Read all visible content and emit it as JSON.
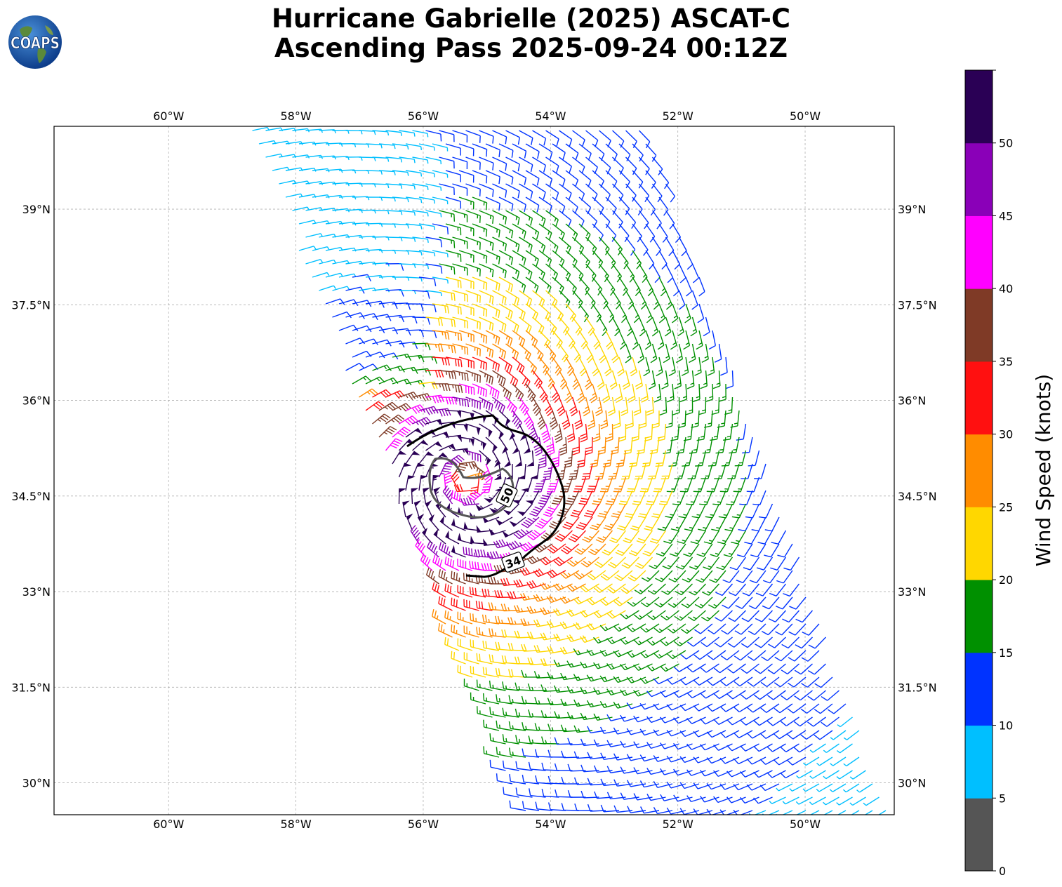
{
  "title": {
    "line1": "Hurricane Gabrielle (2025) ASCAT-C",
    "line2": "Ascending Pass 2025-09-24 00:12Z"
  },
  "logo": {
    "text": "COAPS",
    "icon": "globe-icon"
  },
  "map": {
    "lon_ticks": [
      "60°W",
      "58°W",
      "56°W",
      "54°W",
      "52°W",
      "50°W"
    ],
    "lat_ticks": [
      "39°N",
      "37.5°N",
      "36°N",
      "34.5°N",
      "33°N",
      "31.5°N",
      "30°N"
    ],
    "lon_values": [
      -60,
      -58,
      -56,
      -54,
      -52,
      -50
    ],
    "lat_values": [
      39,
      37.5,
      36,
      34.5,
      33,
      31.5,
      30
    ],
    "lon_range": [
      -61.8,
      -48.6
    ],
    "lat_range": [
      29.5,
      40.3
    ],
    "contours": [
      {
        "label": "34",
        "value": 34,
        "color": "#000000"
      },
      {
        "label": "50",
        "value": 50,
        "color": "#555555"
      }
    ]
  },
  "colorbar": {
    "label": "Wind Speed (knots)",
    "tick_labels": [
      "0",
      "5",
      "10",
      "15",
      "20",
      "25",
      "30",
      "35",
      "40",
      "45",
      "50"
    ],
    "bins": [
      {
        "range": "0-5",
        "color": "#555555"
      },
      {
        "range": "5-10",
        "color": "#00bfff"
      },
      {
        "range": "10-15",
        "color": "#0033ff"
      },
      {
        "range": "15-20",
        "color": "#009000"
      },
      {
        "range": "20-25",
        "color": "#ffd700"
      },
      {
        "range": "25-30",
        "color": "#ff8c00"
      },
      {
        "range": "30-35",
        "color": "#ff1010"
      },
      {
        "range": "35-40",
        "color": "#7f3a26"
      },
      {
        "range": "40-45",
        "color": "#ff00ff"
      },
      {
        "range": "45-50",
        "color": "#8a00b8"
      },
      {
        "range": "50+",
        "color": "#2a0055"
      }
    ]
  },
  "storm": {
    "center_lon": -55.3,
    "center_lat": 34.75
  }
}
